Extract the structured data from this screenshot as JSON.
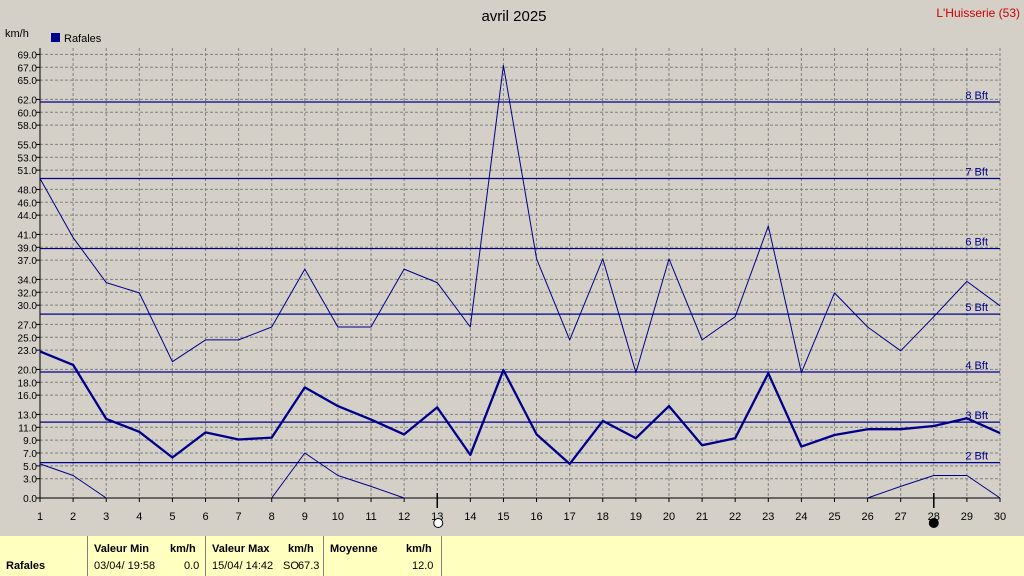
{
  "header": {
    "title": "avril 2025",
    "station": "L'Huisserie (53)",
    "unit": "km/h",
    "legend_label": "Rafales",
    "legend_color": "#00008B"
  },
  "chart_data": {
    "type": "line",
    "title": "avril 2025",
    "ylabel": "km/h",
    "x": [
      1,
      2,
      3,
      4,
      5,
      6,
      7,
      8,
      9,
      10,
      11,
      12,
      13,
      14,
      15,
      16,
      17,
      18,
      19,
      20,
      21,
      22,
      23,
      24,
      25,
      26,
      27,
      28,
      29,
      30
    ],
    "xlim": [
      1,
      30
    ],
    "ylim": [
      0,
      70
    ],
    "yticks": [
      0.0,
      3.0,
      5.0,
      7.0,
      9.0,
      11.0,
      13.0,
      16.0,
      18.0,
      20.0,
      23.0,
      25.0,
      27.0,
      30.0,
      32.0,
      34.0,
      37.0,
      39.0,
      41.0,
      44.0,
      46.0,
      48.0,
      51.0,
      53.0,
      55.0,
      58.0,
      60.0,
      62.0,
      65.0,
      67.0,
      69.0
    ],
    "grid": true,
    "legend_position": "top-left",
    "beaufort": [
      {
        "label": "2 Bft",
        "value": 5.5
      },
      {
        "label": "3 Bft",
        "value": 11.8
      },
      {
        "label": "4 Bft",
        "value": 19.6
      },
      {
        "label": "5 Bft",
        "value": 28.6
      },
      {
        "label": "6 Bft",
        "value": 38.8
      },
      {
        "label": "7 Bft",
        "value": 49.7
      },
      {
        "label": "8 Bft",
        "value": 61.6
      }
    ],
    "series": [
      {
        "role": "max",
        "color": "#00008B",
        "width": 1,
        "values": [
          49.7,
          40.5,
          33.5,
          31.9,
          21.2,
          24.6,
          24.6,
          26.6,
          35.6,
          26.6,
          26.6,
          35.6,
          33.5,
          26.6,
          67.3,
          37.2,
          24.6,
          37.2,
          19.5,
          37.2,
          24.6,
          28.2,
          42.3,
          19.5,
          31.9,
          26.6,
          22.9,
          28.2,
          33.7,
          29.9
        ]
      },
      {
        "name": "Rafales",
        "role": "average",
        "color": "#00008B",
        "width": 2.3,
        "values": [
          22.8,
          20.7,
          12.3,
          10.3,
          6.3,
          10.2,
          9.1,
          9.4,
          17.2,
          14.3,
          12.2,
          9.9,
          14.1,
          6.7,
          19.9,
          9.9,
          5.3,
          12.0,
          9.3,
          14.3,
          8.2,
          9.3,
          19.4,
          8.0,
          9.8,
          10.7,
          10.7,
          11.2,
          12.4,
          10.1
        ]
      },
      {
        "role": "min",
        "color": "#00008B",
        "width": 1,
        "segments": [
          {
            "x": [
              1,
              2,
              3
            ],
            "values": [
              5.3,
              3.5,
              0.0
            ]
          },
          {
            "x": [
              8,
              9,
              10,
              11,
              12
            ],
            "values": [
              0.0,
              7.0,
              3.5,
              1.8,
              0.0
            ]
          },
          {
            "x": [
              26,
              27,
              28,
              29,
              30
            ],
            "values": [
              0.0,
              1.8,
              3.5,
              3.5,
              0.0
            ]
          }
        ]
      }
    ],
    "moon": [
      {
        "day": 13,
        "phase": "full-moon"
      },
      {
        "day": 28,
        "phase": "new-moon"
      }
    ]
  },
  "footer": {
    "series_label": "Rafales",
    "min_header": "Valeur Min",
    "min_unit": "km/h",
    "min_datetime": "03/04/  19:58",
    "min_value": "0.0",
    "max_header": "Valeur Max",
    "max_unit": "km/h",
    "max_datetime": "15/04/  14:42",
    "max_direction": "SO",
    "max_value": "67.3",
    "avg_header": "Moyenne",
    "avg_unit": "km/h",
    "avg_value": "12.0"
  }
}
